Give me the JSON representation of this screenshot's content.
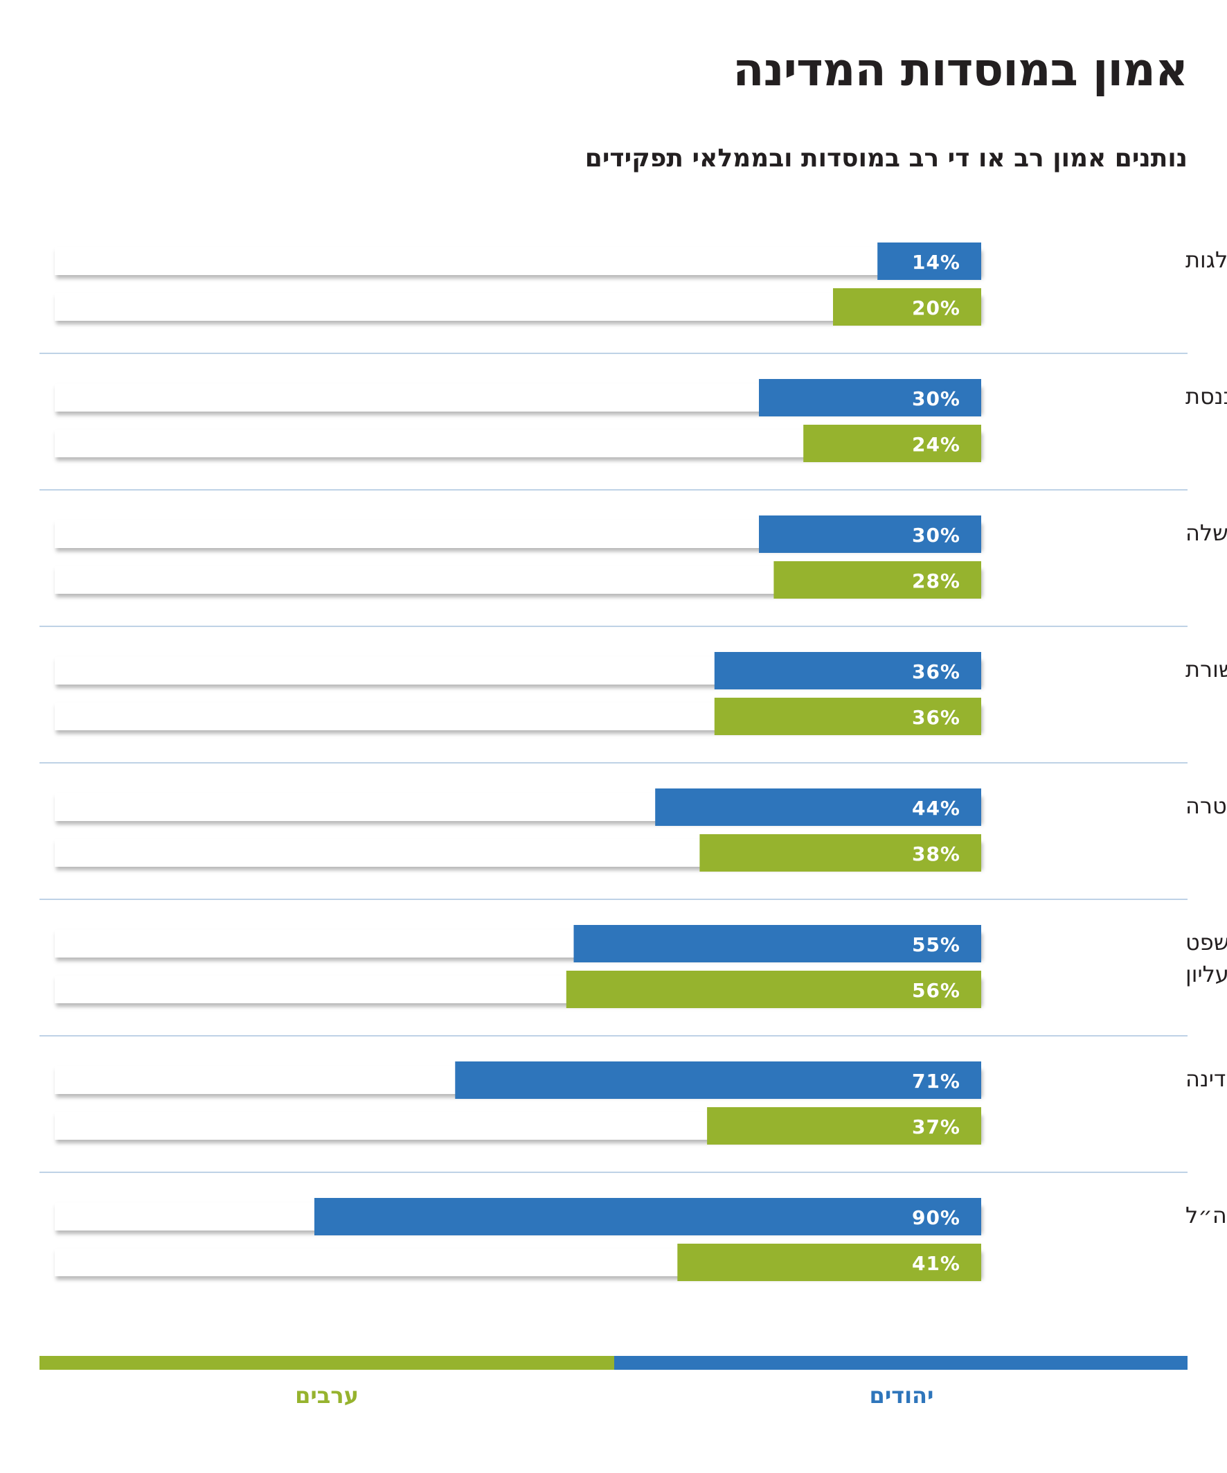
{
  "title": "אמון במוסדות המדינה",
  "subtitle": "נותנים אמון רב או די רב במוסדות ובממלאי תפקידים",
  "colors": {
    "jews": "#2e75bb",
    "arabs": "#96b32e",
    "track": "#ffffff",
    "separator": "#a9c4de",
    "text": "#231f20"
  },
  "legend": {
    "jews_label": "יהודים",
    "arabs_label": "ערבים"
  },
  "chart_data": {
    "type": "bar",
    "orientation": "horizontal",
    "title": "אמון במוסדות המדינה",
    "subtitle": "נותנים אמון רב או די רב במוסדות ובממלאי תפקידים",
    "categories": [
      "המפלגות",
      "הכנסת",
      "הממשלה",
      "התקשורת",
      "המשטרה",
      "בית המשפט העליון",
      "נשיא המדינה",
      "צה״ל"
    ],
    "series": [
      {
        "name": "יהודים",
        "color": "#2e75bb",
        "values": [
          14,
          30,
          30,
          36,
          44,
          55,
          71,
          90
        ]
      },
      {
        "name": "ערבים",
        "color": "#96b32e",
        "values": [
          20,
          24,
          28,
          36,
          38,
          56,
          37,
          41
        ]
      }
    ],
    "labels": {
      "jews": [
        "14%",
        "30%",
        "30%",
        "36%",
        "44%",
        "55%",
        "71%",
        "90%"
      ],
      "arabs": [
        "20%",
        "24%",
        "28%",
        "36%",
        "38%",
        "56%",
        "37%",
        "41%"
      ]
    },
    "xlim": [
      0,
      100
    ],
    "grid": false,
    "legend_position": "bottom"
  }
}
